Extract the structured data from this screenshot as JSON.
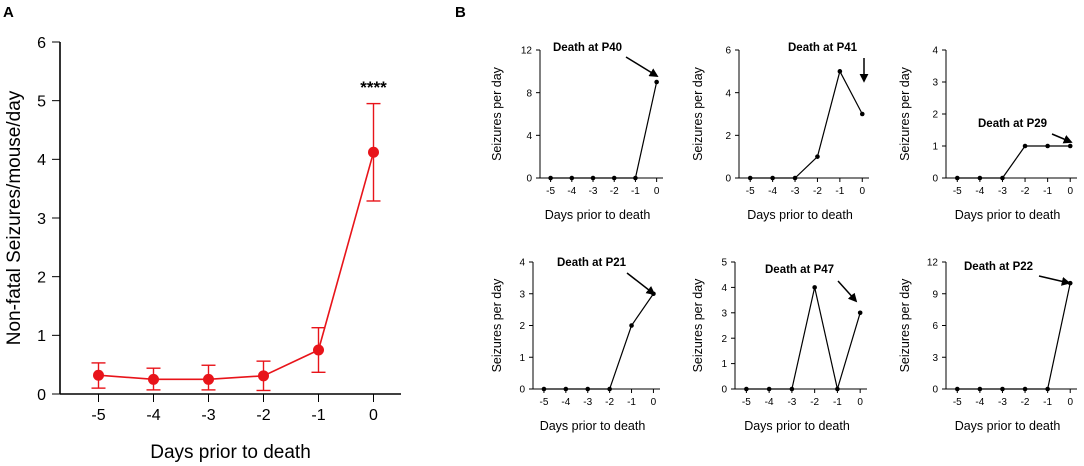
{
  "panels": {
    "a_label": "A",
    "b_label": "B"
  },
  "chart_data": [
    {
      "id": "A",
      "type": "line",
      "color": "#e8141a",
      "x": [
        -5,
        -4,
        -3,
        -2,
        -1,
        0
      ],
      "x_tick_labels": [
        "-5",
        "-4",
        "-3",
        "-2",
        "-1",
        "0"
      ],
      "values": [
        0.32,
        0.25,
        0.25,
        0.31,
        0.75,
        4.12
      ],
      "error_low": [
        0.1,
        0.07,
        0.07,
        0.06,
        0.37,
        3.29
      ],
      "error_high": [
        0.53,
        0.44,
        0.49,
        0.56,
        1.13,
        4.95
      ],
      "xlabel": "Days prior to death",
      "ylabel": "Non-fatal Seizures/mouse/day",
      "ylim": [
        0,
        6
      ],
      "yticks": [
        0,
        1,
        2,
        3,
        4,
        5,
        6
      ],
      "y_tick_labels": [
        "0",
        "1",
        "2",
        "3",
        "4",
        "5",
        "6"
      ],
      "significance": "****"
    },
    {
      "id": "B1",
      "type": "line",
      "color": "#000000",
      "x": [
        -5,
        -4,
        -3,
        -2,
        -1,
        0
      ],
      "x_tick_labels": [
        "-5",
        "-4",
        "-3",
        "-2",
        "-1",
        "0"
      ],
      "values": [
        0,
        0,
        0,
        0,
        0,
        9
      ],
      "ylim": [
        0,
        12
      ],
      "yticks": [
        0,
        4,
        8,
        12
      ],
      "y_tick_labels": [
        "0",
        "4",
        "8",
        "12"
      ],
      "xlabel": "Days prior to death",
      "ylabel": "Seizures per day",
      "annotation": "Death at P40"
    },
    {
      "id": "B2",
      "type": "line",
      "color": "#000000",
      "x": [
        -5,
        -4,
        -3,
        -2,
        -1,
        0
      ],
      "x_tick_labels": [
        "-5",
        "-4",
        "-3",
        "-2",
        "-1",
        "0"
      ],
      "values": [
        0,
        0,
        0,
        1,
        5,
        3
      ],
      "ylim": [
        0,
        6
      ],
      "yticks": [
        0,
        2,
        4,
        6
      ],
      "y_tick_labels": [
        "0",
        "2",
        "4",
        "6"
      ],
      "xlabel": "Days prior to death",
      "ylabel": "Seizures per day",
      "annotation": "Death at P41"
    },
    {
      "id": "B3",
      "type": "line",
      "color": "#000000",
      "x": [
        -5,
        -4,
        -3,
        -2,
        -1,
        0
      ],
      "x_tick_labels": [
        "-5",
        "-4",
        "-3",
        "-2",
        "-1",
        "0"
      ],
      "values": [
        0,
        0,
        0,
        1,
        1,
        1
      ],
      "ylim": [
        0,
        4
      ],
      "yticks": [
        0,
        1,
        2,
        3,
        4
      ],
      "y_tick_labels": [
        "0",
        "1",
        "2",
        "3",
        "4"
      ],
      "xlabel": "Days prior to death",
      "ylabel": "Seizures per day",
      "annotation": "Death at P29"
    },
    {
      "id": "B4",
      "type": "line",
      "color": "#000000",
      "x": [
        -5,
        -4,
        -3,
        -2,
        -1,
        0
      ],
      "x_tick_labels": [
        "-5",
        "-4",
        "-3",
        "-2",
        "-1",
        "0"
      ],
      "values": [
        0,
        0,
        0,
        0,
        2,
        3
      ],
      "ylim": [
        0,
        4
      ],
      "yticks": [
        0,
        1,
        2,
        3,
        4
      ],
      "y_tick_labels": [
        "0",
        "1",
        "2",
        "3",
        "4"
      ],
      "xlabel": "Days prior to death",
      "ylabel": "Seizures per day",
      "annotation": "Death at P21"
    },
    {
      "id": "B5",
      "type": "line",
      "color": "#000000",
      "x": [
        -5,
        -4,
        -3,
        -2,
        -1,
        0
      ],
      "x_tick_labels": [
        "-5",
        "-4",
        "-3",
        "-2",
        "-1",
        "0"
      ],
      "values": [
        0,
        0,
        0,
        4,
        0,
        3
      ],
      "ylim": [
        0,
        5
      ],
      "yticks": [
        0,
        1,
        2,
        3,
        4,
        5
      ],
      "y_tick_labels": [
        "0",
        "1",
        "2",
        "3",
        "4",
        "5"
      ],
      "xlabel": "Days prior to death",
      "ylabel": "Seizures per day",
      "annotation": "Death at P47"
    },
    {
      "id": "B6",
      "type": "line",
      "color": "#000000",
      "x": [
        -5,
        -4,
        -3,
        -2,
        -1,
        0
      ],
      "x_tick_labels": [
        "-5",
        "-4",
        "-3",
        "-2",
        "-1",
        "0"
      ],
      "values": [
        0,
        0,
        0,
        0,
        0,
        10
      ],
      "ylim": [
        0,
        12
      ],
      "yticks": [
        0,
        3,
        6,
        9,
        12
      ],
      "y_tick_labels": [
        "0",
        "3",
        "6",
        "9",
        "12"
      ],
      "xlabel": "Days prior to death",
      "ylabel": "Seizures per day",
      "annotation": "Death at P22"
    }
  ]
}
